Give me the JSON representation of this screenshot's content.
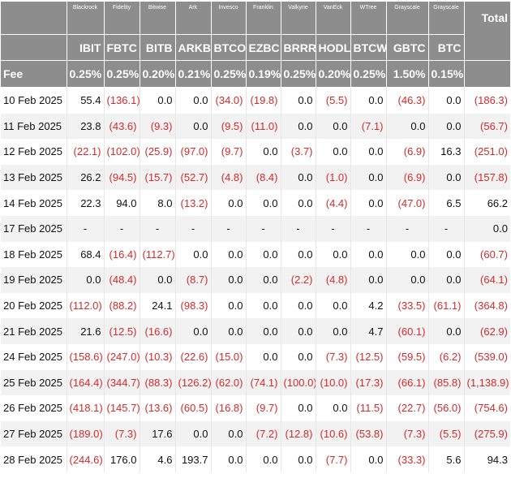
{
  "header": {
    "issuers": [
      "Blackrock",
      "Fidelity",
      "Bitwise",
      "Ark",
      "Invesco",
      "Franklin",
      "Valkyrie",
      "VanEck",
      "WTree",
      "Grayscale",
      "Grayscale"
    ],
    "total": "Total",
    "tickers": [
      "IBIT",
      "FBTC",
      "BITB",
      "ARKB",
      "BTCO",
      "EZBC",
      "BRRR",
      "HODL",
      "BTCW",
      "GBTC",
      "BTC"
    ],
    "fee_label": "Fee",
    "fees": [
      "0.25%",
      "0.25%",
      "0.20%",
      "0.21%",
      "0.25%",
      "0.19%",
      "0.25%",
      "0.20%",
      "0.25%",
      "1.50%",
      "0.15%"
    ]
  },
  "rows": [
    {
      "date": "10 Feb 2025",
      "values": [
        "55.4",
        "(136.1)",
        "0.0",
        "0.0",
        "(34.0)",
        "(19.8)",
        "0.0",
        "(5.5)",
        "0.0",
        "(46.3)",
        "0.0",
        "(186.3)"
      ]
    },
    {
      "date": "11 Feb 2025",
      "values": [
        "23.8",
        "(43.6)",
        "(9.3)",
        "0.0",
        "(9.5)",
        "(11.0)",
        "0.0",
        "0.0",
        "(7.1)",
        "0.0",
        "0.0",
        "(56.7)"
      ]
    },
    {
      "date": "12 Feb 2025",
      "values": [
        "(22.1)",
        "(102.0)",
        "(25.9)",
        "(97.0)",
        "(9.7)",
        "0.0",
        "(3.7)",
        "0.0",
        "0.0",
        "(6.9)",
        "16.3",
        "(251.0)"
      ]
    },
    {
      "date": "13 Feb 2025",
      "values": [
        "26.2",
        "(94.5)",
        "(15.7)",
        "(52.7)",
        "(4.8)",
        "(8.4)",
        "0.0",
        "(1.0)",
        "0.0",
        "(6.9)",
        "0.0",
        "(157.8)"
      ]
    },
    {
      "date": "14 Feb 2025",
      "values": [
        "22.3",
        "94.0",
        "8.0",
        "(13.2)",
        "0.0",
        "0.0",
        "0.0",
        "(4.4)",
        "0.0",
        "(47.0)",
        "6.5",
        "66.2"
      ]
    },
    {
      "date": "17 Feb 2025",
      "values": [
        "-",
        "-",
        "-",
        "-",
        "-",
        "-",
        "-",
        "-",
        "-",
        "-",
        "-",
        "0.0"
      ]
    },
    {
      "date": "18 Feb 2025",
      "values": [
        "68.4",
        "(16.4)",
        "(112.7)",
        "0.0",
        "0.0",
        "0.0",
        "0.0",
        "0.0",
        "0.0",
        "0.0",
        "0.0",
        "(60.7)"
      ]
    },
    {
      "date": "19 Feb 2025",
      "values": [
        "0.0",
        "(48.4)",
        "0.0",
        "(8.7)",
        "0.0",
        "0.0",
        "(2.2)",
        "(4.8)",
        "0.0",
        "0.0",
        "0.0",
        "(64.1)"
      ]
    },
    {
      "date": "20 Feb 2025",
      "values": [
        "(112.0)",
        "(88.2)",
        "24.1",
        "(98.3)",
        "0.0",
        "0.0",
        "0.0",
        "0.0",
        "4.2",
        "(33.5)",
        "(61.1)",
        "(364.8)"
      ]
    },
    {
      "date": "21 Feb 2025",
      "values": [
        "21.6",
        "(12.5)",
        "(16.6)",
        "0.0",
        "0.0",
        "0.0",
        "0.0",
        "0.0",
        "4.7",
        "(60.1)",
        "0.0",
        "(62.9)"
      ]
    },
    {
      "date": "24 Feb 2025",
      "values": [
        "(158.6)",
        "(247.0)",
        "(10.3)",
        "(22.6)",
        "(15.0)",
        "0.0",
        "0.0",
        "(7.3)",
        "(12.5)",
        "(59.5)",
        "(6.2)",
        "(539.0)"
      ]
    },
    {
      "date": "25 Feb 2025",
      "values": [
        "(164.4)",
        "(344.7)",
        "(88.3)",
        "(126.2)",
        "(62.0)",
        "(74.1)",
        "(100.0)",
        "(10.0)",
        "(17.3)",
        "(66.1)",
        "(85.8)",
        "(1,138.9)"
      ]
    },
    {
      "date": "26 Feb 2025",
      "values": [
        "(418.1)",
        "(145.7)",
        "(13.6)",
        "(60.5)",
        "(16.8)",
        "(9.7)",
        "0.0",
        "0.0",
        "(11.5)",
        "(22.7)",
        "(56.0)",
        "(754.6)"
      ]
    },
    {
      "date": "27 Feb 2025",
      "values": [
        "(189.0)",
        "(7.3)",
        "17.6",
        "0.0",
        "0.0",
        "(7.2)",
        "(12.8)",
        "(10.6)",
        "(53.8)",
        "(7.3)",
        "(5.5)",
        "(275.9)"
      ]
    },
    {
      "date": "28 Feb 2025",
      "values": [
        "(244.6)",
        "176.0",
        "4.6",
        "193.7",
        "0.0",
        "0.0",
        "0.0",
        "(7.7)",
        "0.0",
        "(33.3)",
        "5.6",
        "94.3"
      ]
    }
  ]
}
